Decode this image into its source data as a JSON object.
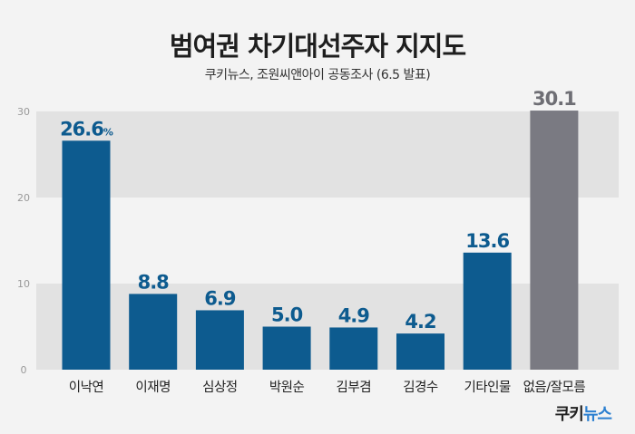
{
  "title": "범여권 차기대선주자 지지도",
  "subtitle": "쿠키뉴스, 조원씨앤아이 공동조사 (6.5 발표)",
  "brand": {
    "part1": "쿠키",
    "part2": "뉴스"
  },
  "chart_data": {
    "type": "bar",
    "categories": [
      "이낙연",
      "이재명",
      "심상정",
      "박원순",
      "김부겸",
      "김경수",
      "기타인물",
      "없음/잘모름"
    ],
    "values": [
      26.6,
      8.8,
      6.9,
      5.0,
      4.9,
      4.2,
      13.6,
      30.1
    ],
    "value_labels": [
      "26.6",
      "8.8",
      "6.9",
      "5.0",
      "4.9",
      "4.2",
      "13.6",
      "30.1"
    ],
    "first_label_unit": "%",
    "ylim": [
      0,
      30
    ],
    "yticks": [
      "0",
      "10",
      "20",
      "30"
    ],
    "grid": "alternating bands",
    "colors": {
      "bar": "#0d5b8f",
      "bar_last": "#7a7a82",
      "label": "#0d5b8f",
      "label_last": "#6e6e74",
      "band": "#e2e2e2",
      "tick": "#999999"
    }
  }
}
